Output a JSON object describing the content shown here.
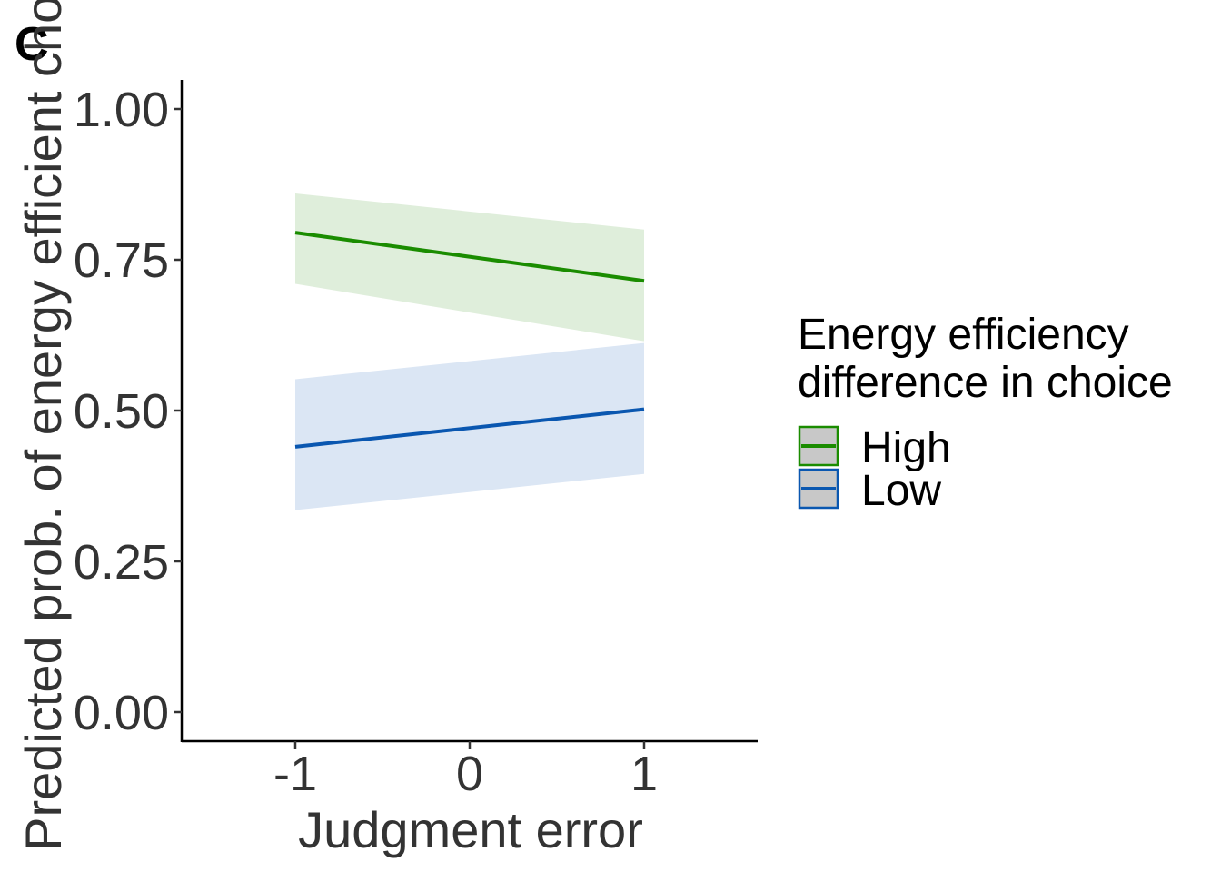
{
  "panel_label": "C",
  "chart_data": {
    "type": "line",
    "title": "",
    "xlabel": "Judgment error",
    "ylabel": "Predicted prob. of energy efficient choice",
    "xlim": [
      -1.65,
      1.65
    ],
    "ylim": [
      0.0,
      1.05
    ],
    "x_ticks": [
      -1,
      0,
      1
    ],
    "x_tick_labels": [
      "-1",
      "0",
      "1"
    ],
    "y_ticks": [
      0.0,
      0.25,
      0.5,
      0.75,
      1.0
    ],
    "y_tick_labels": [
      "0.00",
      "0.25",
      "0.50",
      "0.75",
      "1.00"
    ],
    "grid": false,
    "legend": {
      "title_line1": "Energy efficiency",
      "title_line2": "difference in choice",
      "position": "right"
    },
    "series": [
      {
        "name": "High",
        "color": "#1a8c00",
        "fill": "#dfeedb",
        "x": [
          -1,
          1
        ],
        "y": [
          0.795,
          0.715
        ],
        "lower": [
          0.71,
          0.615
        ],
        "upper": [
          0.86,
          0.8
        ]
      },
      {
        "name": "Low",
        "color": "#0a57b0",
        "fill": "#dbe6f4",
        "x": [
          -1,
          1
        ],
        "y": [
          0.44,
          0.502
        ],
        "lower": [
          0.335,
          0.395
        ],
        "upper": [
          0.552,
          0.612
        ]
      }
    ]
  }
}
